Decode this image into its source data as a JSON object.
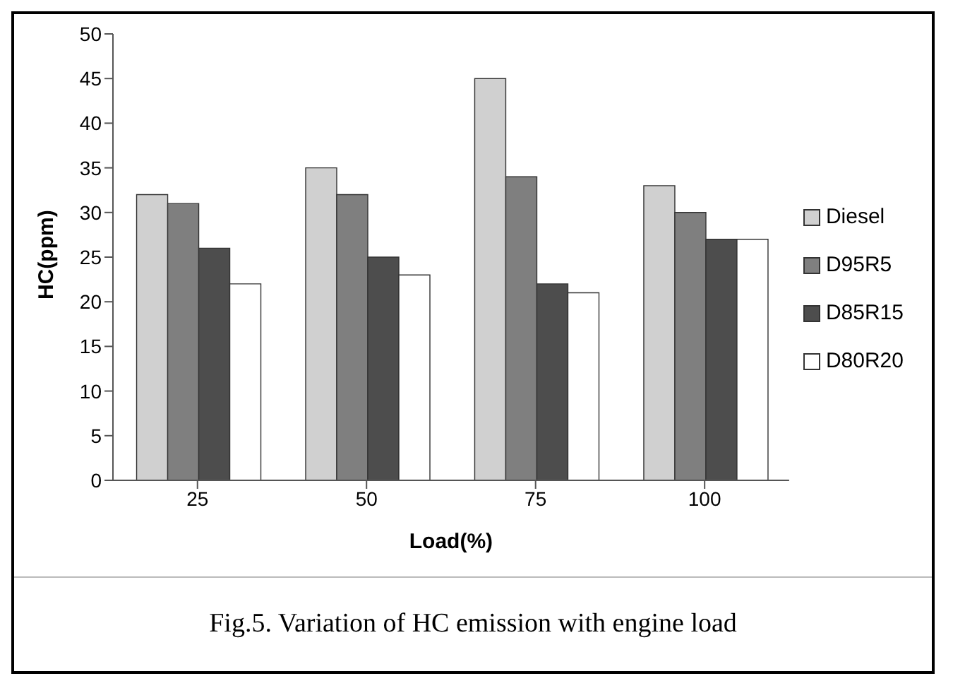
{
  "chart_data": {
    "type": "bar",
    "categories": [
      "25",
      "50",
      "75",
      "100"
    ],
    "xlabel": "Load(%)",
    "ylabel": "HC(ppm)",
    "series": [
      {
        "name": "Diesel",
        "color": "#d0d0d0",
        "values": [
          32,
          35,
          45,
          33
        ]
      },
      {
        "name": "D95R5",
        "color": "#7f7f7f",
        "values": [
          31,
          32,
          34,
          30
        ]
      },
      {
        "name": "D85R15",
        "color": "#4d4d4d",
        "values": [
          26,
          25,
          22,
          27
        ]
      },
      {
        "name": "D80R20",
        "color": "#ffffff",
        "values": [
          22,
          23,
          21,
          27
        ]
      }
    ],
    "ylim": [
      0,
      50
    ],
    "yticks": [
      0,
      5,
      10,
      15,
      20,
      25,
      30,
      35,
      40,
      45,
      50
    ],
    "grid": false,
    "legend": "right",
    "annotations": [
      "Fig.5. Variation of HC emission with engine load"
    ]
  }
}
